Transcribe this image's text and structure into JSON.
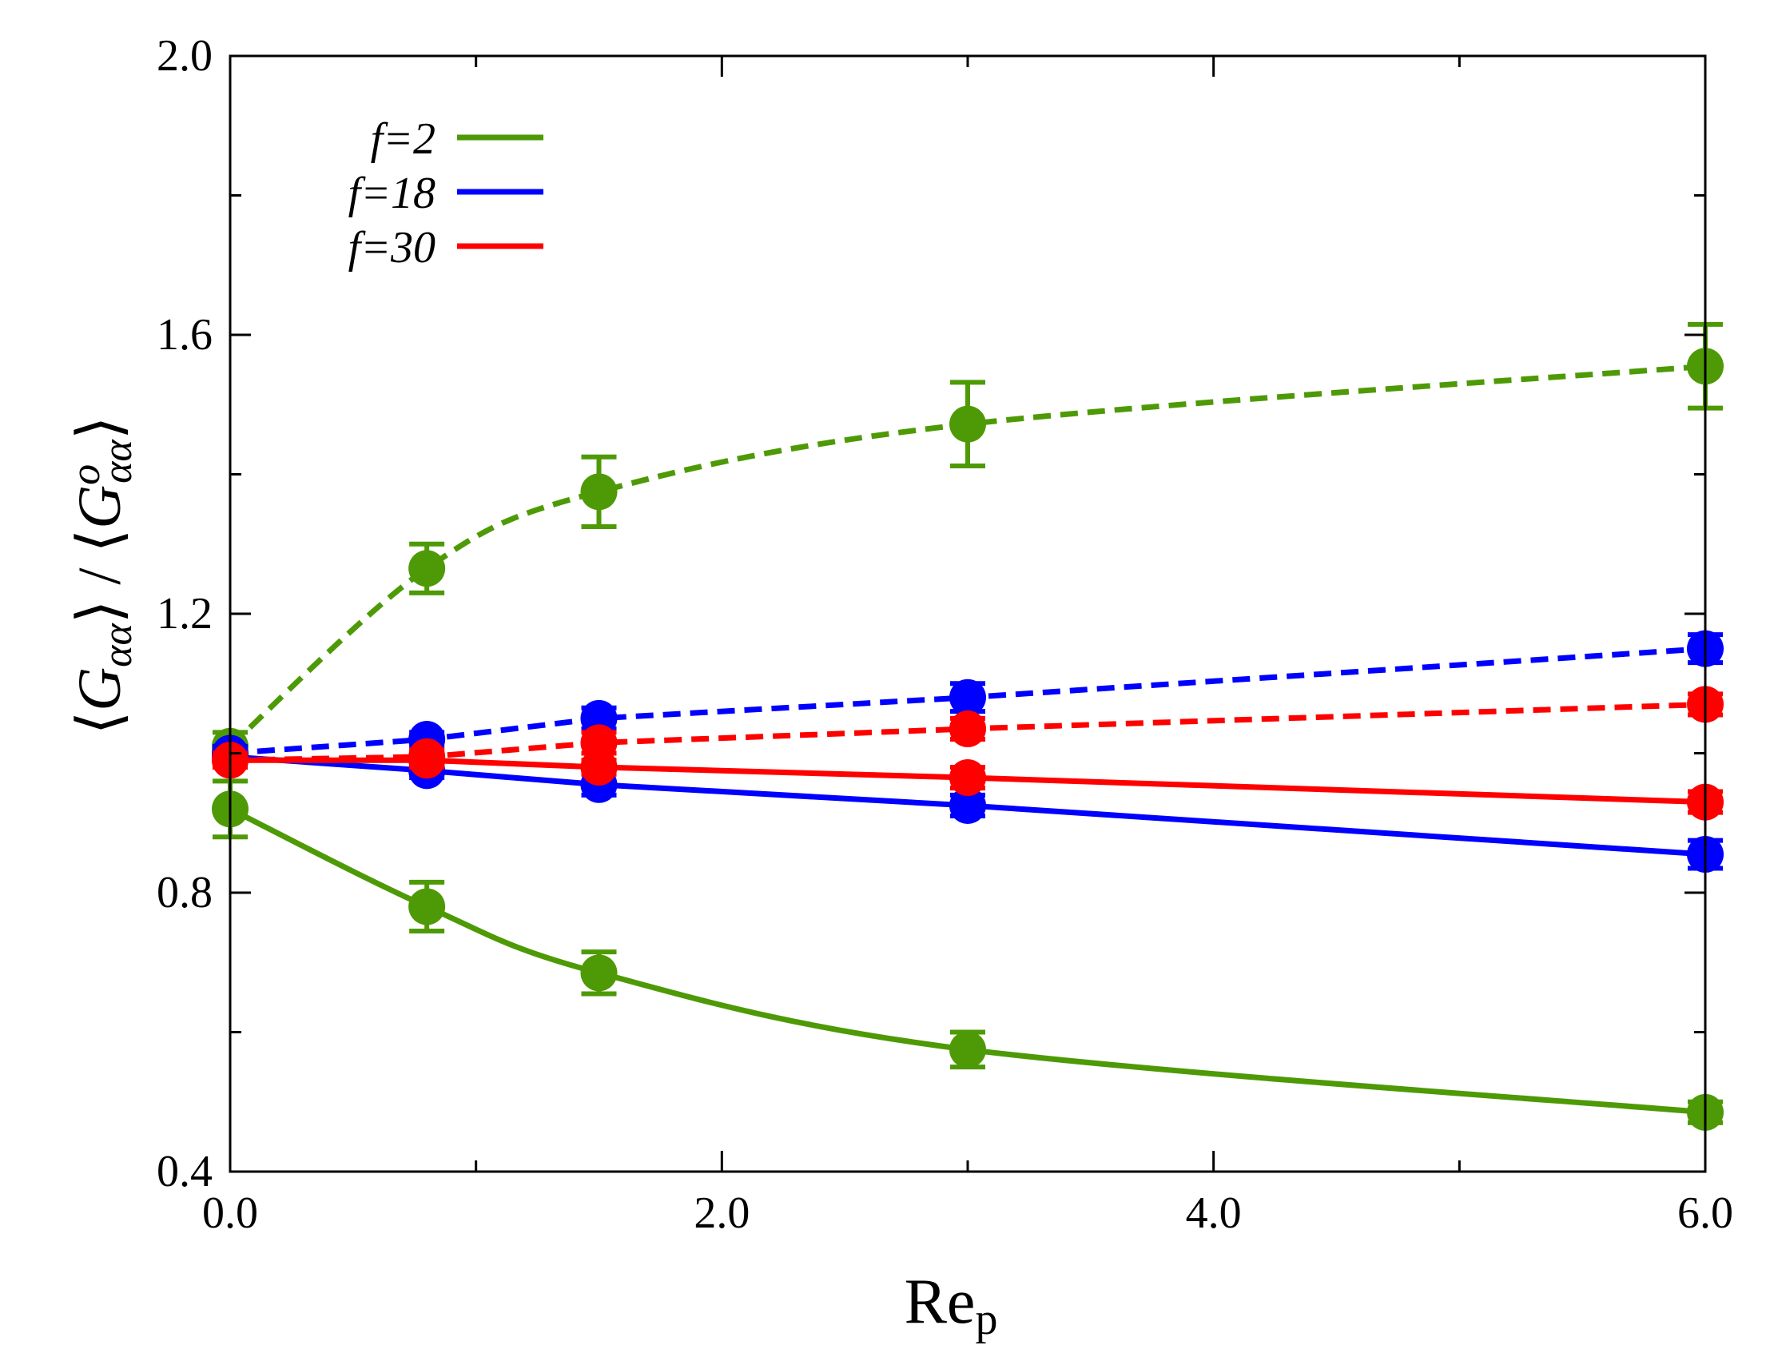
{
  "chart_data": {
    "type": "line",
    "title": "",
    "xlabel": "Re",
    "xlabel_sub": "p",
    "ylabel": {
      "open": "⟨",
      "G": "G",
      "sub": "αα",
      "close": "⟩",
      "slash": " / ",
      "open2": "⟨",
      "G2": "G",
      "sup2": "o",
      "sub2": "αα",
      "close2": "⟩"
    },
    "xlim": [
      0,
      6
    ],
    "ylim": [
      0.4,
      2.0
    ],
    "xticks": [
      0,
      2,
      4,
      6
    ],
    "xtick_labels": [
      "0.0",
      "2.0",
      "4.0",
      "6.0"
    ],
    "xminor": [
      1,
      3,
      5
    ],
    "yticks": [
      0.4,
      0.8,
      1.2,
      1.6,
      2.0
    ],
    "ytick_labels": [
      "0.4",
      "0.8",
      "1.2",
      "1.6",
      "2.0"
    ],
    "yminor": [
      0.6,
      1.0,
      1.4,
      1.8
    ],
    "legend_position": "top-left",
    "legend": [
      {
        "label": "f=2",
        "color": "#4e9a06"
      },
      {
        "label": "f=18",
        "color": "#0000ff"
      },
      {
        "label": "f=30",
        "color": "#ff0000"
      }
    ],
    "series": [
      {
        "name": "f=2 dashed",
        "color": "#4e9a06",
        "dash": true,
        "x": [
          0,
          0.8,
          1.5,
          3,
          6
        ],
        "y": [
          1.01,
          1.265,
          1.375,
          1.472,
          1.555
        ],
        "err": [
          0.02,
          0.035,
          0.05,
          0.06,
          0.06
        ],
        "curve": true
      },
      {
        "name": "f=2 solid",
        "color": "#4e9a06",
        "dash": false,
        "x": [
          0,
          0.8,
          1.5,
          3,
          6
        ],
        "y": [
          0.92,
          0.78,
          0.685,
          0.575,
          0.485
        ],
        "err": [
          0.04,
          0.035,
          0.03,
          0.025,
          0.015
        ],
        "curve": true
      },
      {
        "name": "f=18 dashed",
        "color": "#0000ff",
        "dash": true,
        "x": [
          0,
          0.8,
          1.5,
          3,
          6
        ],
        "y": [
          1.0,
          1.02,
          1.05,
          1.08,
          1.15
        ],
        "err": [
          0.01,
          0.01,
          0.015,
          0.02,
          0.02
        ],
        "curve": false
      },
      {
        "name": "f=18 solid",
        "color": "#0000ff",
        "dash": false,
        "x": [
          0,
          0.8,
          1.5,
          3,
          6
        ],
        "y": [
          0.995,
          0.975,
          0.955,
          0.925,
          0.855
        ],
        "err": [
          0.01,
          0.01,
          0.015,
          0.015,
          0.02
        ],
        "curve": false
      },
      {
        "name": "f=30 dashed",
        "color": "#ff0000",
        "dash": true,
        "x": [
          0,
          0.8,
          1.5,
          3,
          6
        ],
        "y": [
          0.99,
          0.995,
          1.015,
          1.035,
          1.07
        ],
        "err": [
          0.01,
          0.01,
          0.015,
          0.015,
          0.015
        ],
        "curve": false
      },
      {
        "name": "f=30 solid",
        "color": "#ff0000",
        "dash": false,
        "x": [
          0,
          0.8,
          1.5,
          3,
          6
        ],
        "y": [
          0.99,
          0.99,
          0.98,
          0.965,
          0.93
        ],
        "err": [
          0.01,
          0.01,
          0.01,
          0.015,
          0.015
        ],
        "curve": false
      }
    ]
  }
}
